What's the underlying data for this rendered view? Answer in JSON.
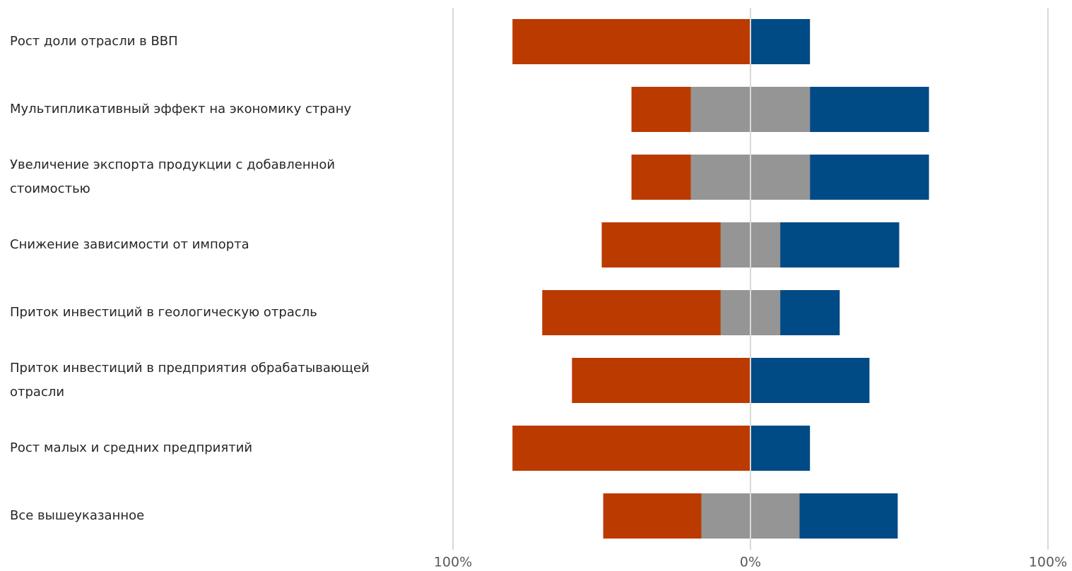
{
  "chart_data": {
    "type": "diverging-bar",
    "categories": [
      "Рост доли отрасли в ВВП",
      "Мультипликативный эффект на экономику страну",
      "Увеличение экспорта продукции с добавленной стоимостью",
      "Снижение зависимости от импорта",
      "Приток инвестиций в геологическую отрасль",
      "Приток инвестиций в предприятия обрабатывающей отрасли",
      "Рост малых и средних предприятий",
      "Все вышеуказанное"
    ],
    "series": [
      {
        "color": "#bb3a00",
        "values": [
          80,
          20,
          20,
          40,
          60,
          60,
          80,
          33
        ]
      },
      {
        "color": "#959595",
        "values": [
          0,
          40,
          40,
          20,
          20,
          0,
          0,
          33
        ]
      },
      {
        "color": "#004a86",
        "values": [
          20,
          40,
          40,
          40,
          20,
          40,
          20,
          33
        ]
      }
    ],
    "xlim": [
      -100,
      100
    ],
    "xticks": [
      {
        "value": -100,
        "label": "100%"
      },
      {
        "value": 0,
        "label": "0%"
      },
      {
        "value": 100,
        "label": "100%"
      }
    ],
    "grid": true
  }
}
